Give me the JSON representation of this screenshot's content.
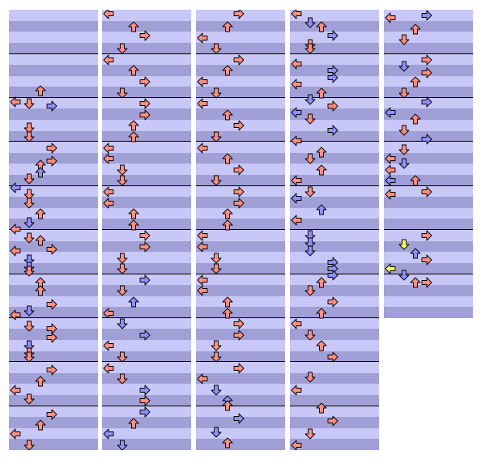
{
  "chart": {
    "title": "",
    "columns_count": 5,
    "measures_per_column": [
      10,
      10,
      10,
      10,
      7
    ],
    "rows_per_measure": 4,
    "lanes": [
      "left",
      "down",
      "up",
      "right"
    ]
  },
  "colors": {
    "stripe_light": "#c8c8f8",
    "stripe_dark": "#a0a0d6",
    "measure_line": "#000000",
    "note_quarter": "#ff8f80",
    "note_eighth": "#8f8fff",
    "note_special": "#f0ff60",
    "note_outline": "#000000"
  },
  "notes": [
    {
      "c": 0,
      "t": 1.8,
      "d": "up",
      "k": "q"
    },
    {
      "c": 0,
      "t": 2.05,
      "d": "left",
      "k": "q"
    },
    {
      "c": 0,
      "t": 2.1,
      "d": "down",
      "k": "q"
    },
    {
      "c": 0,
      "t": 2.15,
      "d": "right",
      "k": "e"
    },
    {
      "c": 0,
      "t": 2.65,
      "d": "down",
      "k": "q"
    },
    {
      "c": 0,
      "t": 2.85,
      "d": "down",
      "k": "q"
    },
    {
      "c": 0,
      "t": 3.1,
      "d": "right",
      "k": "q"
    },
    {
      "c": 0,
      "t": 3.4,
      "d": "right",
      "k": "q"
    },
    {
      "c": 0,
      "t": 3.5,
      "d": "up",
      "k": "q"
    },
    {
      "c": 0,
      "t": 3.65,
      "d": "up",
      "k": "e"
    },
    {
      "c": 0,
      "t": 3.8,
      "d": "down",
      "k": "q"
    },
    {
      "c": 0,
      "t": 4.0,
      "d": "left",
      "k": "e"
    },
    {
      "c": 0,
      "t": 4.15,
      "d": "down",
      "k": "q"
    },
    {
      "c": 0,
      "t": 4.35,
      "d": "down",
      "k": "q"
    },
    {
      "c": 0,
      "t": 4.6,
      "d": "up",
      "k": "q"
    },
    {
      "c": 0,
      "t": 4.8,
      "d": "down",
      "k": "e"
    },
    {
      "c": 0,
      "t": 4.95,
      "d": "left",
      "k": "q"
    },
    {
      "c": 0,
      "t": 5.15,
      "d": "down",
      "k": "q"
    },
    {
      "c": 0,
      "t": 5.2,
      "d": "up",
      "k": "q"
    },
    {
      "c": 0,
      "t": 5.4,
      "d": "right",
      "k": "q"
    },
    {
      "c": 0,
      "t": 5.45,
      "d": "left",
      "k": "q"
    },
    {
      "c": 0,
      "t": 5.65,
      "d": "down",
      "k": "e"
    },
    {
      "c": 0,
      "t": 5.8,
      "d": "down",
      "k": "e"
    },
    {
      "c": 0,
      "t": 5.9,
      "d": "down",
      "k": "q"
    },
    {
      "c": 0,
      "t": 6.15,
      "d": "up",
      "k": "q"
    },
    {
      "c": 0,
      "t": 6.35,
      "d": "up",
      "k": "q"
    },
    {
      "c": 0,
      "t": 6.65,
      "d": "right",
      "k": "q"
    },
    {
      "c": 0,
      "t": 6.8,
      "d": "down",
      "k": "e"
    },
    {
      "c": 0,
      "t": 6.9,
      "d": "left",
      "k": "q"
    },
    {
      "c": 0,
      "t": 7.15,
      "d": "down",
      "k": "q"
    },
    {
      "c": 0,
      "t": 7.2,
      "d": "right",
      "k": "q"
    },
    {
      "c": 0,
      "t": 7.4,
      "d": "right",
      "k": "q"
    },
    {
      "c": 0,
      "t": 7.6,
      "d": "down",
      "k": "e"
    },
    {
      "c": 0,
      "t": 7.75,
      "d": "down",
      "k": "q"
    },
    {
      "c": 0,
      "t": 7.85,
      "d": "down",
      "k": "q"
    },
    {
      "c": 0,
      "t": 8.15,
      "d": "right",
      "k": "q"
    },
    {
      "c": 0,
      "t": 8.4,
      "d": "up",
      "k": "q"
    },
    {
      "c": 0,
      "t": 8.6,
      "d": "left",
      "k": "q"
    },
    {
      "c": 0,
      "t": 8.8,
      "d": "down",
      "k": "q"
    },
    {
      "c": 0,
      "t": 9.15,
      "d": "right",
      "k": "q"
    },
    {
      "c": 0,
      "t": 9.4,
      "d": "up",
      "k": "q"
    },
    {
      "c": 0,
      "t": 9.6,
      "d": "left",
      "k": "q"
    },
    {
      "c": 0,
      "t": 9.85,
      "d": "down",
      "k": "q"
    },
    {
      "c": 1,
      "t": 0.05,
      "d": "left",
      "k": "q"
    },
    {
      "c": 1,
      "t": 0.35,
      "d": "up",
      "k": "q"
    },
    {
      "c": 1,
      "t": 0.55,
      "d": "right",
      "k": "q"
    },
    {
      "c": 1,
      "t": 0.85,
      "d": "down",
      "k": "q"
    },
    {
      "c": 1,
      "t": 1.1,
      "d": "left",
      "k": "q"
    },
    {
      "c": 1,
      "t": 1.35,
      "d": "up",
      "k": "q"
    },
    {
      "c": 1,
      "t": 1.6,
      "d": "right",
      "k": "q"
    },
    {
      "c": 1,
      "t": 1.85,
      "d": "down",
      "k": "q"
    },
    {
      "c": 1,
      "t": 2.1,
      "d": "right",
      "k": "q"
    },
    {
      "c": 1,
      "t": 2.35,
      "d": "right",
      "k": "q"
    },
    {
      "c": 1,
      "t": 2.6,
      "d": "up",
      "k": "q"
    },
    {
      "c": 1,
      "t": 2.85,
      "d": "up",
      "k": "q"
    },
    {
      "c": 1,
      "t": 3.1,
      "d": "left",
      "k": "q"
    },
    {
      "c": 1,
      "t": 3.35,
      "d": "left",
      "k": "q"
    },
    {
      "c": 1,
      "t": 3.6,
      "d": "down",
      "k": "q"
    },
    {
      "c": 1,
      "t": 3.85,
      "d": "down",
      "k": "q"
    },
    {
      "c": 1,
      "t": 4.1,
      "d": "left",
      "k": "q"
    },
    {
      "c": 1,
      "t": 4.35,
      "d": "left",
      "k": "q"
    },
    {
      "c": 1,
      "t": 4.6,
      "d": "up",
      "k": "q"
    },
    {
      "c": 1,
      "t": 4.85,
      "d": "up",
      "k": "q"
    },
    {
      "c": 1,
      "t": 5.1,
      "d": "right",
      "k": "q"
    },
    {
      "c": 1,
      "t": 5.35,
      "d": "right",
      "k": "q"
    },
    {
      "c": 1,
      "t": 5.6,
      "d": "down",
      "k": "q"
    },
    {
      "c": 1,
      "t": 5.85,
      "d": "down",
      "k": "q"
    },
    {
      "c": 1,
      "t": 6.1,
      "d": "right",
      "k": "e"
    },
    {
      "c": 1,
      "t": 6.35,
      "d": "down",
      "k": "q"
    },
    {
      "c": 1,
      "t": 6.6,
      "d": "up",
      "k": "e"
    },
    {
      "c": 1,
      "t": 6.85,
      "d": "left",
      "k": "q"
    },
    {
      "c": 1,
      "t": 7.1,
      "d": "down",
      "k": "e"
    },
    {
      "c": 1,
      "t": 7.35,
      "d": "right",
      "k": "e"
    },
    {
      "c": 1,
      "t": 7.6,
      "d": "left",
      "k": "q"
    },
    {
      "c": 1,
      "t": 7.85,
      "d": "down",
      "k": "q"
    },
    {
      "c": 1,
      "t": 8.1,
      "d": "left",
      "k": "q"
    },
    {
      "c": 1,
      "t": 8.35,
      "d": "down",
      "k": "q"
    },
    {
      "c": 1,
      "t": 8.6,
      "d": "right",
      "k": "e"
    },
    {
      "c": 1,
      "t": 8.85,
      "d": "right",
      "k": "q"
    },
    {
      "c": 1,
      "t": 9.1,
      "d": "right",
      "k": "e"
    },
    {
      "c": 1,
      "t": 9.35,
      "d": "up",
      "k": "q"
    },
    {
      "c": 1,
      "t": 9.6,
      "d": "left",
      "k": "e"
    },
    {
      "c": 1,
      "t": 9.85,
      "d": "down",
      "k": "e"
    },
    {
      "c": 2,
      "t": 0.05,
      "d": "right",
      "k": "q"
    },
    {
      "c": 2,
      "t": 0.35,
      "d": "up",
      "k": "q"
    },
    {
      "c": 2,
      "t": 0.6,
      "d": "left",
      "k": "q"
    },
    {
      "c": 2,
      "t": 0.85,
      "d": "down",
      "k": "q"
    },
    {
      "c": 2,
      "t": 1.1,
      "d": "right",
      "k": "q"
    },
    {
      "c": 2,
      "t": 1.35,
      "d": "up",
      "k": "q"
    },
    {
      "c": 2,
      "t": 1.6,
      "d": "left",
      "k": "q"
    },
    {
      "c": 2,
      "t": 1.85,
      "d": "down",
      "k": "q"
    },
    {
      "c": 2,
      "t": 2.1,
      "d": "left",
      "k": "q"
    },
    {
      "c": 2,
      "t": 2.35,
      "d": "up",
      "k": "q"
    },
    {
      "c": 2,
      "t": 2.6,
      "d": "right",
      "k": "q"
    },
    {
      "c": 2,
      "t": 2.85,
      "d": "down",
      "k": "q"
    },
    {
      "c": 2,
      "t": 3.1,
      "d": "left",
      "k": "q"
    },
    {
      "c": 2,
      "t": 3.35,
      "d": "up",
      "k": "q"
    },
    {
      "c": 2,
      "t": 3.6,
      "d": "right",
      "k": "q"
    },
    {
      "c": 2,
      "t": 3.85,
      "d": "down",
      "k": "q"
    },
    {
      "c": 2,
      "t": 4.1,
      "d": "right",
      "k": "q"
    },
    {
      "c": 2,
      "t": 4.35,
      "d": "right",
      "k": "q"
    },
    {
      "c": 2,
      "t": 4.6,
      "d": "up",
      "k": "q"
    },
    {
      "c": 2,
      "t": 4.85,
      "d": "up",
      "k": "q"
    },
    {
      "c": 2,
      "t": 5.1,
      "d": "left",
      "k": "q"
    },
    {
      "c": 2,
      "t": 5.35,
      "d": "left",
      "k": "q"
    },
    {
      "c": 2,
      "t": 5.6,
      "d": "down",
      "k": "q"
    },
    {
      "c": 2,
      "t": 5.85,
      "d": "down",
      "k": "q"
    },
    {
      "c": 2,
      "t": 6.1,
      "d": "left",
      "k": "q"
    },
    {
      "c": 2,
      "t": 6.35,
      "d": "left",
      "k": "q"
    },
    {
      "c": 2,
      "t": 6.6,
      "d": "up",
      "k": "q"
    },
    {
      "c": 2,
      "t": 6.85,
      "d": "up",
      "k": "q"
    },
    {
      "c": 2,
      "t": 7.1,
      "d": "right",
      "k": "q"
    },
    {
      "c": 2,
      "t": 7.35,
      "d": "right",
      "k": "q"
    },
    {
      "c": 2,
      "t": 7.6,
      "d": "down",
      "k": "q"
    },
    {
      "c": 2,
      "t": 7.85,
      "d": "down",
      "k": "q"
    },
    {
      "c": 2,
      "t": 8.1,
      "d": "right",
      "k": "q"
    },
    {
      "c": 2,
      "t": 8.35,
      "d": "left",
      "k": "q"
    },
    {
      "c": 2,
      "t": 8.6,
      "d": "down",
      "k": "e"
    },
    {
      "c": 2,
      "t": 8.85,
      "d": "up",
      "k": "e"
    },
    {
      "c": 2,
      "t": 8.95,
      "d": "up",
      "k": "q"
    },
    {
      "c": 2,
      "t": 9.25,
      "d": "right",
      "k": "e"
    },
    {
      "c": 2,
      "t": 9.55,
      "d": "down",
      "k": "e"
    },
    {
      "c": 2,
      "t": 9.8,
      "d": "up",
      "k": "q"
    },
    {
      "c": 3,
      "t": 0.05,
      "d": "left",
      "k": "q"
    },
    {
      "c": 3,
      "t": 0.25,
      "d": "down",
      "k": "e"
    },
    {
      "c": 3,
      "t": 0.35,
      "d": "up",
      "k": "q"
    },
    {
      "c": 3,
      "t": 0.55,
      "d": "right",
      "k": "e"
    },
    {
      "c": 3,
      "t": 0.75,
      "d": "down",
      "k": "q"
    },
    {
      "c": 3,
      "t": 0.85,
      "d": "down",
      "k": "q"
    },
    {
      "c": 3,
      "t": 1.2,
      "d": "left",
      "k": "q"
    },
    {
      "c": 3,
      "t": 1.35,
      "d": "right",
      "k": "e"
    },
    {
      "c": 3,
      "t": 1.5,
      "d": "right",
      "k": "e"
    },
    {
      "c": 3,
      "t": 1.65,
      "d": "left",
      "k": "q"
    },
    {
      "c": 3,
      "t": 1.85,
      "d": "up",
      "k": "q"
    },
    {
      "c": 3,
      "t": 2.0,
      "d": "down",
      "k": "e"
    },
    {
      "c": 3,
      "t": 2.15,
      "d": "right",
      "k": "q"
    },
    {
      "c": 3,
      "t": 2.3,
      "d": "left",
      "k": "e"
    },
    {
      "c": 3,
      "t": 2.45,
      "d": "down",
      "k": "q"
    },
    {
      "c": 3,
      "t": 2.7,
      "d": "right",
      "k": "e"
    },
    {
      "c": 3,
      "t": 2.95,
      "d": "left",
      "k": "q"
    },
    {
      "c": 3,
      "t": 3.2,
      "d": "up",
      "k": "q"
    },
    {
      "c": 3,
      "t": 3.35,
      "d": "down",
      "k": "q"
    },
    {
      "c": 3,
      "t": 3.6,
      "d": "up",
      "k": "q"
    },
    {
      "c": 3,
      "t": 3.85,
      "d": "left",
      "k": "q"
    },
    {
      "c": 3,
      "t": 4.1,
      "d": "down",
      "k": "q"
    },
    {
      "c": 3,
      "t": 4.25,
      "d": "left",
      "k": "e"
    },
    {
      "c": 3,
      "t": 4.5,
      "d": "up",
      "k": "e"
    },
    {
      "c": 3,
      "t": 4.75,
      "d": "left",
      "k": "q"
    },
    {
      "c": 3,
      "t": 5.1,
      "d": "down",
      "k": "e"
    },
    {
      "c": 3,
      "t": 5.25,
      "d": "down",
      "k": "e"
    },
    {
      "c": 3,
      "t": 5.45,
      "d": "down",
      "k": "e"
    },
    {
      "c": 3,
      "t": 5.7,
      "d": "right",
      "k": "e"
    },
    {
      "c": 3,
      "t": 5.85,
      "d": "right",
      "k": "e"
    },
    {
      "c": 3,
      "t": 6.0,
      "d": "right",
      "k": "e"
    },
    {
      "c": 3,
      "t": 6.15,
      "d": "up",
      "k": "q"
    },
    {
      "c": 3,
      "t": 6.35,
      "d": "down",
      "k": "q"
    },
    {
      "c": 3,
      "t": 6.6,
      "d": "right",
      "k": "q"
    },
    {
      "c": 3,
      "t": 6.85,
      "d": "up",
      "k": "q"
    },
    {
      "c": 3,
      "t": 7.1,
      "d": "left",
      "k": "q"
    },
    {
      "c": 3,
      "t": 7.35,
      "d": "down",
      "k": "q"
    },
    {
      "c": 3,
      "t": 7.6,
      "d": "up",
      "k": "q"
    },
    {
      "c": 3,
      "t": 7.85,
      "d": "right",
      "k": "q"
    },
    {
      "c": 3,
      "t": 8.3,
      "d": "down",
      "k": "q"
    },
    {
      "c": 3,
      "t": 8.6,
      "d": "left",
      "k": "q"
    },
    {
      "c": 3,
      "t": 9.0,
      "d": "up",
      "k": "q"
    },
    {
      "c": 3,
      "t": 9.3,
      "d": "right",
      "k": "q"
    },
    {
      "c": 3,
      "t": 9.6,
      "d": "down",
      "k": "q"
    },
    {
      "c": 3,
      "t": 9.85,
      "d": "left",
      "k": "q"
    },
    {
      "c": 4,
      "t": 0.1,
      "d": "right",
      "k": "e"
    },
    {
      "c": 4,
      "t": 0.15,
      "d": "left",
      "k": "q"
    },
    {
      "c": 4,
      "t": 0.4,
      "d": "up",
      "k": "q"
    },
    {
      "c": 4,
      "t": 0.65,
      "d": "down",
      "k": "q"
    },
    {
      "c": 4,
      "t": 1.1,
      "d": "right",
      "k": "q"
    },
    {
      "c": 4,
      "t": 1.25,
      "d": "down",
      "k": "e"
    },
    {
      "c": 4,
      "t": 1.4,
      "d": "right",
      "k": "q"
    },
    {
      "c": 4,
      "t": 1.6,
      "d": "up",
      "k": "q"
    },
    {
      "c": 4,
      "t": 1.85,
      "d": "down",
      "k": "q"
    },
    {
      "c": 4,
      "t": 2.05,
      "d": "right",
      "k": "e"
    },
    {
      "c": 4,
      "t": 2.3,
      "d": "left",
      "k": "e"
    },
    {
      "c": 4,
      "t": 2.45,
      "d": "up",
      "k": "q"
    },
    {
      "c": 4,
      "t": 2.7,
      "d": "down",
      "k": "q"
    },
    {
      "c": 4,
      "t": 2.9,
      "d": "right",
      "k": "e"
    },
    {
      "c": 4,
      "t": 3.15,
      "d": "down",
      "k": "q"
    },
    {
      "c": 4,
      "t": 3.35,
      "d": "left",
      "k": "q"
    },
    {
      "c": 4,
      "t": 3.45,
      "d": "down",
      "k": "e"
    },
    {
      "c": 4,
      "t": 3.6,
      "d": "left",
      "k": "q"
    },
    {
      "c": 4,
      "t": 3.85,
      "d": "left",
      "k": "e"
    },
    {
      "c": 4,
      "t": 3.85,
      "d": "up",
      "k": "q"
    },
    {
      "c": 4,
      "t": 4.1,
      "d": "right",
      "k": "q"
    },
    {
      "c": 4,
      "t": 4.15,
      "d": "left",
      "k": "q"
    },
    {
      "c": 4,
      "t": 5.1,
      "d": "right",
      "k": "q"
    },
    {
      "c": 4,
      "t": 5.3,
      "d": "down",
      "k": "s"
    },
    {
      "c": 4,
      "t": 5.5,
      "d": "up",
      "k": "e"
    },
    {
      "c": 4,
      "t": 5.65,
      "d": "right",
      "k": "q"
    },
    {
      "c": 4,
      "t": 5.85,
      "d": "left",
      "k": "s"
    },
    {
      "c": 4,
      "t": 6.0,
      "d": "down",
      "k": "e"
    },
    {
      "c": 4,
      "t": 6.15,
      "d": "up",
      "k": "q"
    },
    {
      "c": 4,
      "t": 6.15,
      "d": "right",
      "k": "q"
    }
  ]
}
